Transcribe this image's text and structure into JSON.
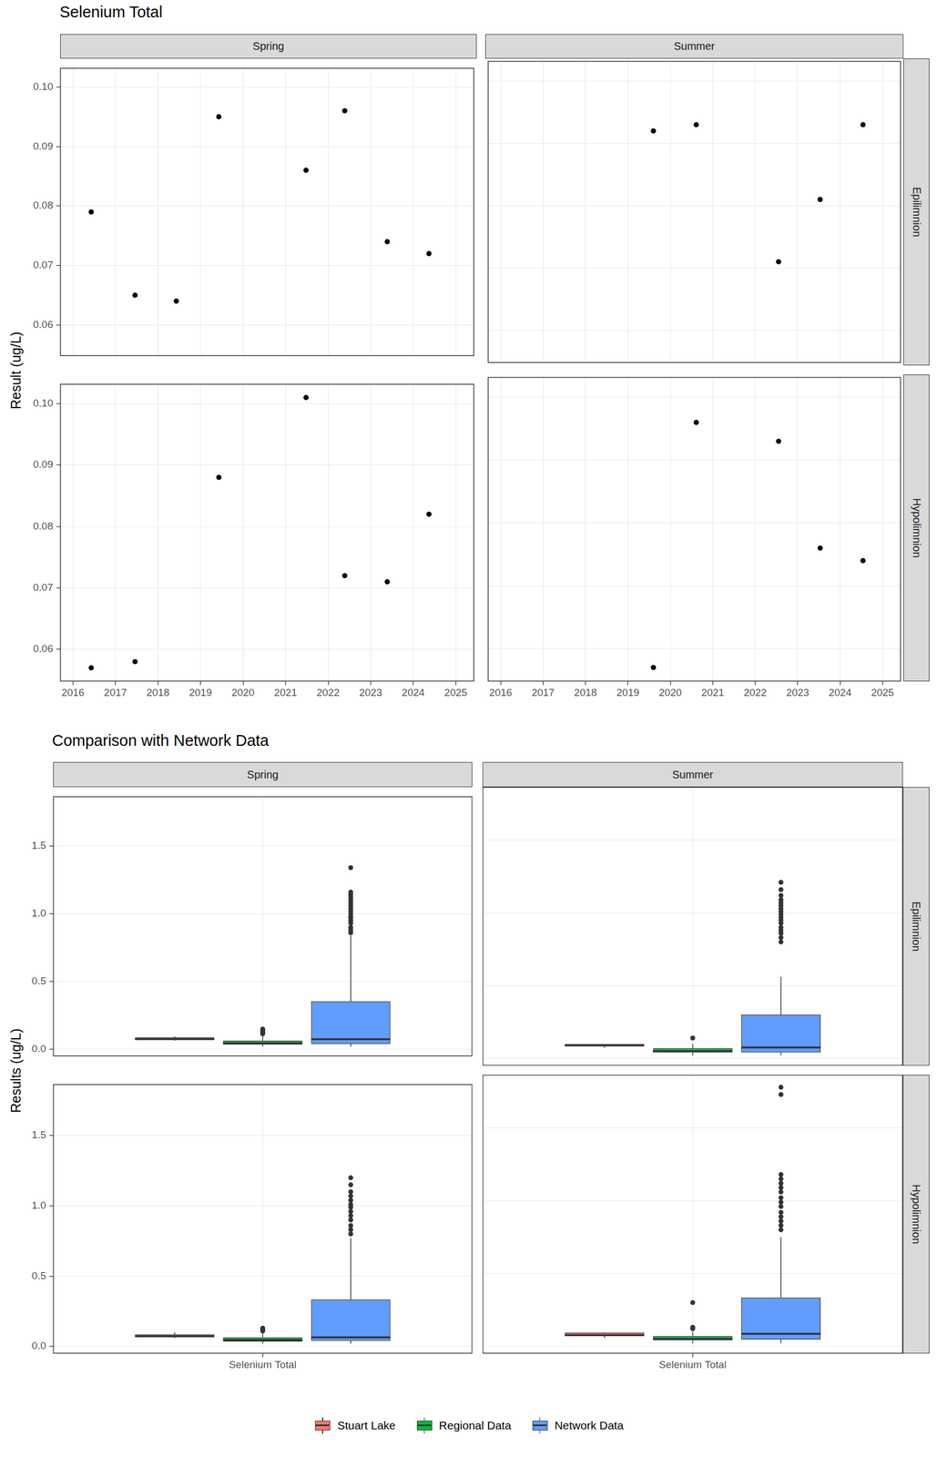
{
  "chart_data": [
    {
      "type": "scatter",
      "title": "Selenium Total",
      "y_label": "Result (ug/L)",
      "columns": [
        "Spring",
        "Summer"
      ],
      "rows": [
        "Epilimnion",
        "Hypolimnion"
      ],
      "color": "#000000",
      "marker": "circle",
      "grid": true,
      "xlim": [
        2015.7,
        2025.43
      ],
      "xticks": [
        2016,
        2017,
        2018,
        2019,
        2020,
        2021,
        2022,
        2023,
        2024,
        2025
      ],
      "ylim": [
        0.0548,
        0.1032
      ],
      "yticks": [
        0.06,
        0.07,
        0.08,
        0.09,
        {
          "value": 0.1,
          "label": "0.10"
        }
      ],
      "panels": [
        {
          "column": "Spring",
          "row": "Epilimnion",
          "x": [
            2016.43,
            2017.46,
            2018.43,
            2019.43,
            2021.48,
            2022.39,
            2023.39,
            2024.37
          ],
          "values": [
            0.079,
            0.065,
            0.064,
            0.095,
            0.086,
            0.096,
            0.074,
            0.072
          ]
        },
        {
          "column": "Summer",
          "row": "Epilimnion",
          "x": [
            2019.6,
            2020.61,
            2022.55,
            2023.53,
            2024.54
          ],
          "values": [
            0.092,
            0.093,
            0.071,
            0.081,
            0.093
          ]
        },
        {
          "column": "Spring",
          "row": "Hypolimnion",
          "x": [
            2016.43,
            2017.46,
            2019.43,
            2021.48,
            2022.39,
            2023.39,
            2024.37
          ],
          "values": [
            0.057,
            0.058,
            0.088,
            0.101,
            0.072,
            0.071,
            0.082
          ]
        },
        {
          "column": "Summer",
          "row": "Hypolimnion",
          "x": [
            2019.6,
            2020.61,
            2022.55,
            2023.53,
            2024.54
          ],
          "values": [
            0.057,
            0.096,
            0.093,
            0.076,
            0.074
          ]
        }
      ]
    },
    {
      "type": "boxplot",
      "title": "Comparison with Network Data",
      "y_label": "Results (ug/L)",
      "columns": [
        "Spring",
        "Summer"
      ],
      "rows": [
        "Epilimnion",
        "Hypolimnion"
      ],
      "categories": [
        "Selenium Total"
      ],
      "grid": true,
      "legend": "bottom",
      "ylim": [
        -0.05,
        1.865
      ],
      "yticks": [
        {
          "value": 0,
          "label": "0.0"
        },
        0.5,
        {
          "value": 1,
          "label": "1.0"
        },
        1.5
      ],
      "series": [
        {
          "name": "Stuart Lake",
          "color": "#F8766D"
        },
        {
          "name": "Regional Data",
          "color": "#00BA38"
        },
        {
          "name": "Network Data",
          "color": "#619CFF"
        }
      ],
      "panels": [
        {
          "column": "Spring",
          "row": "Epilimnion",
          "boxes": [
            {
              "name": "Stuart Lake",
              "whisker_low": 0.064,
              "q1": 0.07025,
              "median": 0.0765,
              "q3": 0.08825,
              "whisker_high": 0.096,
              "outliers": []
            },
            {
              "name": "Regional Data",
              "whisker_low": 0.02,
              "q1": 0.035,
              "median": 0.045,
              "q3": 0.065,
              "whisker_high": 0.105,
              "outliers": [
                0.115,
                0.125,
                0.13,
                0.14,
                0.15
              ]
            },
            {
              "name": "Network Data",
              "whisker_low": 0.02,
              "q1": 0.04,
              "median": 0.075,
              "q3": 0.355,
              "whisker_high": 0.84,
              "outliers": [
                0.86,
                0.88,
                0.9,
                0.93,
                0.95,
                0.97,
                0.98,
                1.0,
                1.02,
                1.04,
                1.06,
                1.08,
                1.1,
                1.12,
                1.14,
                1.16,
                1.34
              ]
            }
          ]
        },
        {
          "column": "Summer",
          "row": "Epilimnion",
          "boxes": [
            {
              "name": "Stuart Lake",
              "whisker_low": 0.071,
              "q1": 0.081,
              "median": 0.092,
              "q3": 0.093,
              "whisker_high": 0.093,
              "outliers": []
            },
            {
              "name": "Regional Data",
              "whisker_low": 0.02,
              "q1": 0.04,
              "median": 0.05,
              "q3": 0.07,
              "whisker_high": 0.1,
              "outliers": [
                0.14
              ]
            },
            {
              "name": "Network Data",
              "whisker_low": 0.02,
              "q1": 0.04,
              "median": 0.075,
              "q3": 0.3,
              "whisker_high": 0.56,
              "outliers": [
                0.8,
                0.83,
                0.86,
                0.88,
                0.9,
                0.93,
                0.95,
                0.97,
                0.99,
                1.01,
                1.03,
                1.05,
                1.07,
                1.09,
                1.12,
                1.16,
                1.21
              ]
            }
          ]
        },
        {
          "column": "Spring",
          "row": "Hypolimnion",
          "boxes": [
            {
              "name": "Stuart Lake",
              "whisker_low": 0.057,
              "q1": 0.0645,
              "median": 0.072,
              "q3": 0.085,
              "whisker_high": 0.101,
              "outliers": []
            },
            {
              "name": "Regional Data",
              "whisker_low": 0.02,
              "q1": 0.035,
              "median": 0.045,
              "q3": 0.065,
              "whisker_high": 0.1,
              "outliers": [
                0.11,
                0.12,
                0.13
              ]
            },
            {
              "name": "Network Data",
              "whisker_low": 0.02,
              "q1": 0.04,
              "median": 0.065,
              "q3": 0.335,
              "whisker_high": 0.77,
              "outliers": [
                0.8,
                0.83,
                0.86,
                0.9,
                0.93,
                0.96,
                0.99,
                1.01,
                1.04,
                1.07,
                1.1,
                1.15,
                1.2
              ]
            }
          ]
        },
        {
          "column": "Summer",
          "row": "Hypolimnion",
          "boxes": [
            {
              "name": "Stuart Lake",
              "whisker_low": 0.057,
              "q1": 0.074,
              "median": 0.076,
              "q3": 0.093,
              "whisker_high": 0.096,
              "outliers": []
            },
            {
              "name": "Regional Data",
              "whisker_low": 0.02,
              "q1": 0.04,
              "median": 0.05,
              "q3": 0.07,
              "whisker_high": 0.1,
              "outliers": [
                0.12,
                0.13,
                0.3
              ]
            },
            {
              "name": "Network Data",
              "whisker_low": 0.02,
              "q1": 0.045,
              "median": 0.085,
              "q3": 0.335,
              "whisker_high": 0.75,
              "outliers": [
                0.8,
                0.83,
                0.86,
                0.89,
                0.92,
                0.96,
                0.99,
                1.02,
                1.06,
                1.09,
                1.12,
                1.15,
                1.18,
                1.73,
                1.78
              ]
            }
          ]
        }
      ]
    }
  ]
}
